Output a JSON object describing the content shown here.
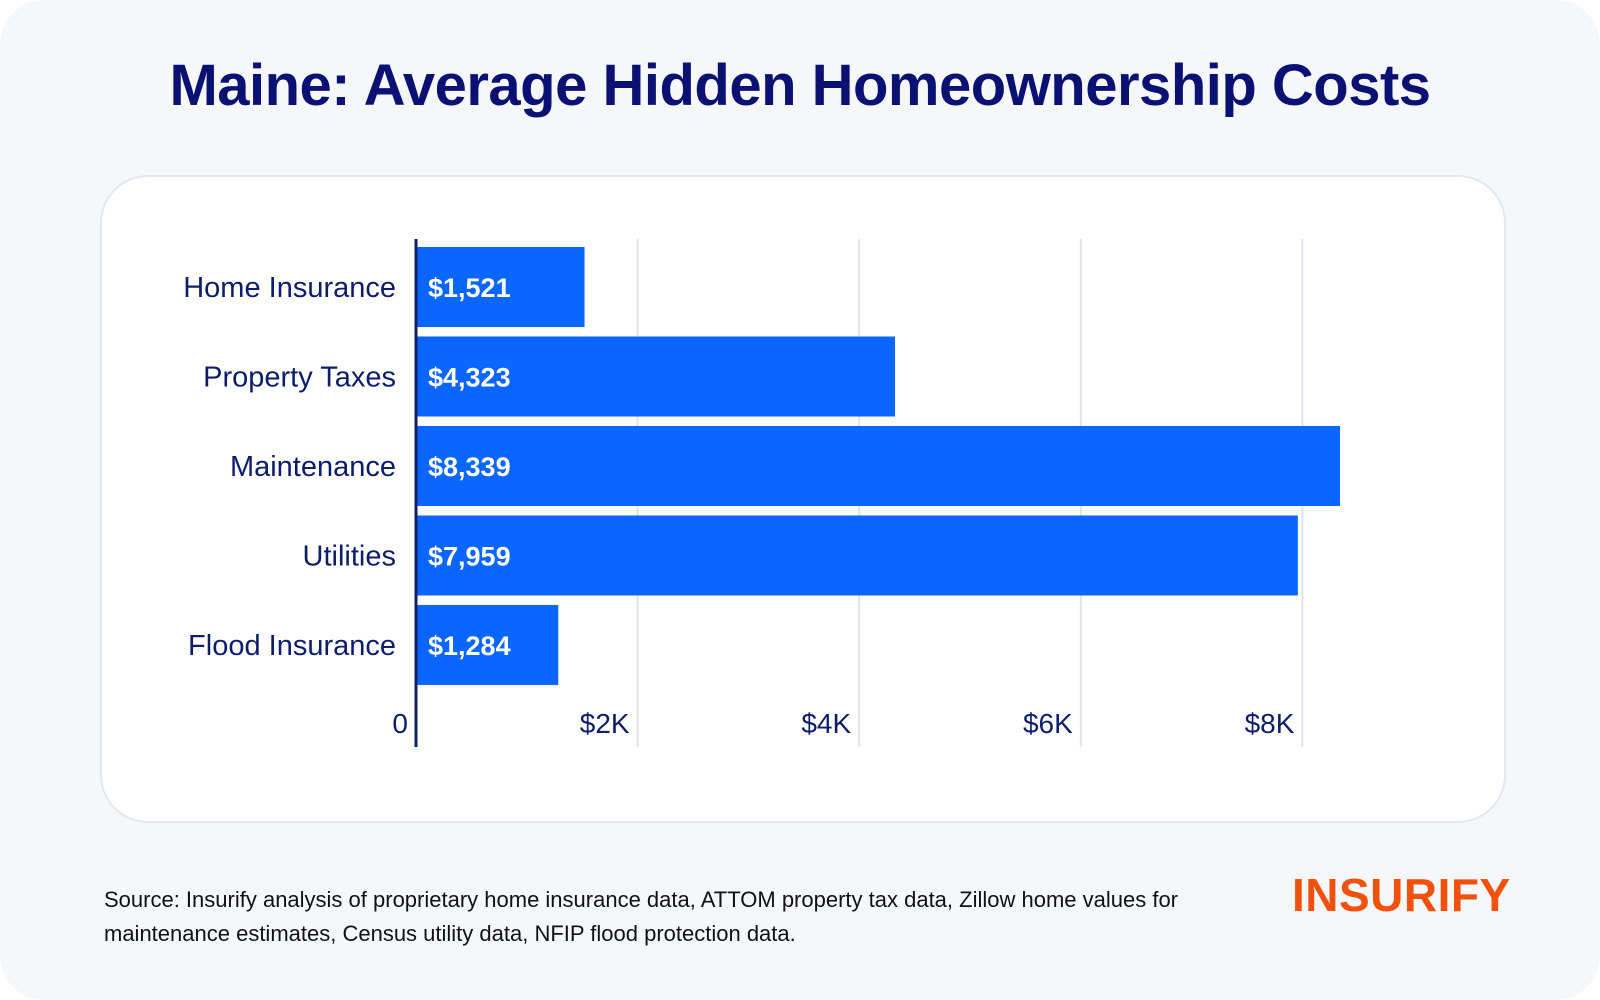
{
  "title": "Maine: Average Hidden Homeownership Costs",
  "source": "Source: Insurify analysis of proprietary home insurance data, ATTOM property tax data, Zillow home values for maintenance estimates, Census utility data, NFIP flood protection data.",
  "logo_text": "INSURIFY",
  "colors": {
    "title": "#0a1172",
    "bar": "#0a66ff",
    "axis_text": "#0d1d6b",
    "logo": "#f0520e",
    "background": "#f5f7fb"
  },
  "chart_data": {
    "type": "bar",
    "orientation": "horizontal",
    "title": "Maine: Average Hidden Homeownership Costs",
    "categories": [
      "Home Insurance",
      "Property Taxes",
      "Maintenance",
      "Utilities",
      "Flood Insurance"
    ],
    "values": [
      1521,
      4323,
      8339,
      7959,
      1284
    ],
    "data_labels": [
      "$1,521",
      "$4,323",
      "$8,339",
      "$7,959",
      "$1,284"
    ],
    "x_ticks": [
      0,
      2000,
      4000,
      6000,
      8000
    ],
    "x_tick_labels": [
      "0",
      "$2K",
      "$4K",
      "$6K",
      "$8K"
    ],
    "xlim": [
      0,
      8500
    ],
    "grid": "vertical",
    "legend": "none"
  }
}
